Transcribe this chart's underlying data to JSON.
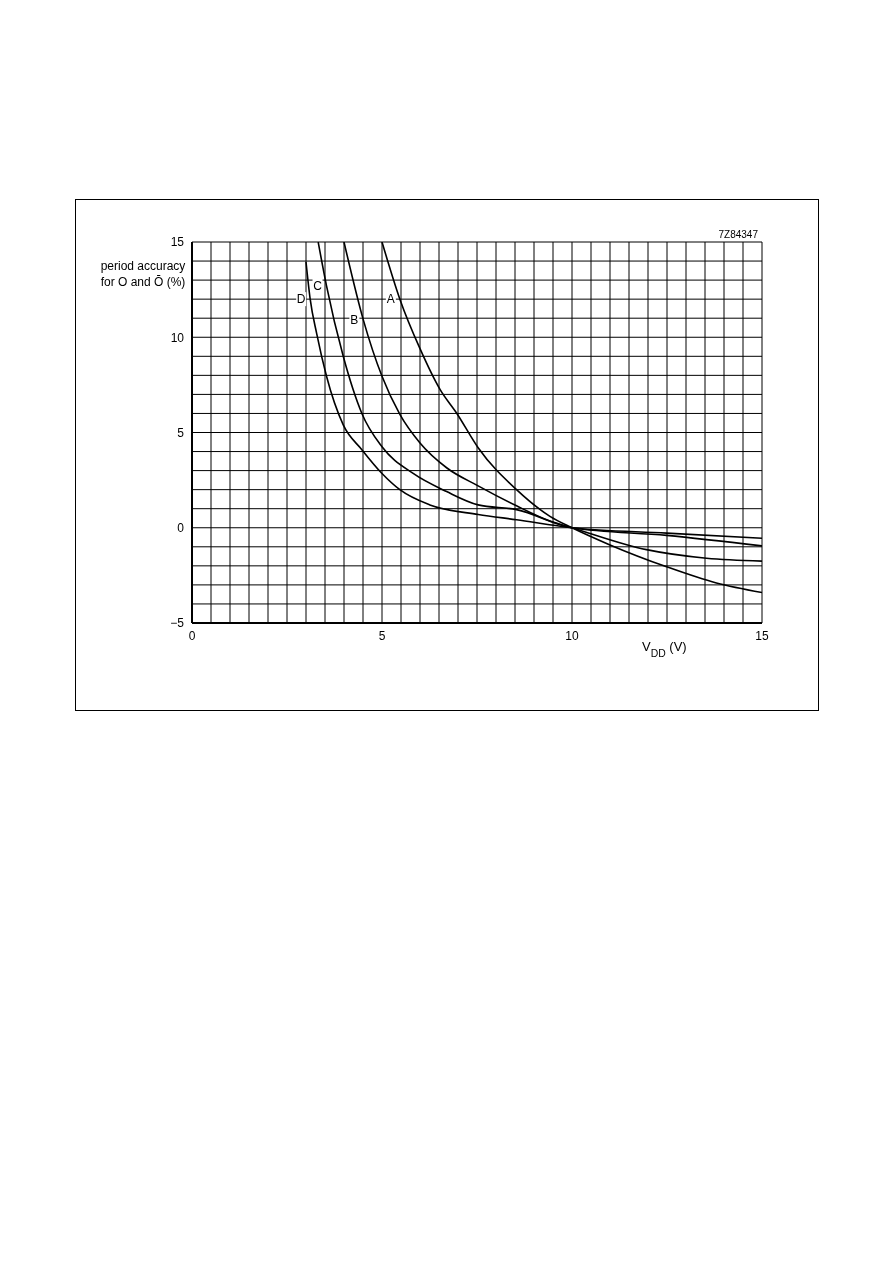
{
  "chart_data": {
    "type": "line",
    "xlabel": "V$_{DD}$ (V)",
    "ylabel": "period accuracy for O and Ō (%)",
    "annotations": [
      "7Z84347"
    ],
    "series": [
      {
        "name": "A",
        "color": "#000000",
        "x": [
          5.0,
          5.47,
          6.0,
          6.53,
          6.97,
          7.53,
          8.54,
          9.42,
          10.0,
          11.0,
          12.49,
          13.8,
          15.0
        ],
        "values": [
          15,
          12,
          9.4,
          7.25,
          6.0,
          4.2,
          2.0,
          0.6,
          0,
          -0.9,
          -2.05,
          -2.9,
          -3.4
        ]
      },
      {
        "name": "B",
        "color": "#000000",
        "x": [
          4.0,
          4.51,
          5.0,
          5.47,
          6.0,
          6.7,
          7.53,
          8.54,
          9.42,
          10.0,
          11.96,
          13.54,
          15.0
        ],
        "values": [
          15,
          10.9,
          7.95,
          5.95,
          4.45,
          3.15,
          2.2,
          1.15,
          0.35,
          0,
          -1.15,
          -1.6,
          -1.75
        ]
      },
      {
        "name": "C",
        "color": "#000000",
        "x": [
          3.32,
          3.54,
          3.98,
          4.47,
          5.0,
          5.82,
          6.7,
          7.53,
          8.54,
          10.0,
          12.49,
          15.0
        ],
        "values": [
          15,
          12.7,
          9.0,
          6.0,
          4.25,
          2.85,
          1.9,
          1.2,
          0.95,
          0,
          -0.4,
          -0.95
        ]
      },
      {
        "name": "D",
        "color": "#000000",
        "x": [
          3.0,
          3.11,
          3.28,
          3.54,
          3.98,
          4.47,
          5.0,
          5.47,
          6.26,
          7.53,
          8.54,
          10.0,
          12.49,
          15.0
        ],
        "values": [
          13.95,
          12.0,
          10.2,
          7.95,
          5.4,
          4.1,
          2.85,
          2.0,
          1.2,
          0.7,
          0.42,
          0,
          -0.28,
          -0.55
        ]
      }
    ],
    "xlim": [
      0,
      15
    ],
    "xticks": [
      0,
      {
        "value": 0.5,
        "label": null
      },
      {
        "value": 1,
        "label": null
      },
      {
        "value": 1.5,
        "label": null
      },
      {
        "value": 2,
        "label": null
      },
      {
        "value": 2.5,
        "label": null
      },
      {
        "value": 3,
        "label": null
      },
      {
        "value": 3.5,
        "label": null
      },
      {
        "value": 4,
        "label": null
      },
      {
        "value": 4.5,
        "label": null
      },
      5,
      {
        "value": 5.5,
        "label": null
      },
      {
        "value": 6,
        "label": null
      },
      {
        "value": 6.5,
        "label": null
      },
      {
        "value": 7,
        "label": null
      },
      {
        "value": 7.5,
        "label": null
      },
      {
        "value": 8,
        "label": null
      },
      {
        "value": 8.5,
        "label": null
      },
      {
        "value": 9,
        "label": null
      },
      {
        "value": 9.5,
        "label": null
      },
      10,
      {
        "value": 10.5,
        "label": null
      },
      {
        "value": 11,
        "label": null
      },
      {
        "value": 11.5,
        "label": null
      },
      {
        "value": 12,
        "label": null
      },
      {
        "value": 12.5,
        "label": null
      },
      {
        "value": 13,
        "label": null
      },
      {
        "value": 13.5,
        "label": null
      },
      {
        "value": 14,
        "label": null
      },
      {
        "value": 14.5,
        "label": null
      },
      15
    ],
    "ylim": [
      -5,
      15
    ],
    "yticks": [
      {
        "value": -5,
        "label": "−5"
      },
      {
        "value": -4,
        "label": null
      },
      {
        "value": -3,
        "label": null
      },
      {
        "value": -2,
        "label": null
      },
      {
        "value": -1,
        "label": null
      },
      0,
      {
        "value": 1,
        "label": null
      },
      {
        "value": 2,
        "label": null
      },
      {
        "value": 3,
        "label": null
      },
      {
        "value": 4,
        "label": null
      },
      5,
      {
        "value": 6,
        "label": null
      },
      {
        "value": 7,
        "label": null
      },
      {
        "value": 8,
        "label": null
      },
      {
        "value": 9,
        "label": null
      },
      10,
      {
        "value": 11,
        "label": null
      },
      {
        "value": 12,
        "label": null
      },
      {
        "value": 13,
        "label": null
      },
      {
        "value": 14,
        "label": null
      },
      15
    ],
    "grid": true,
    "marker": "none",
    "line_style": "solid"
  }
}
